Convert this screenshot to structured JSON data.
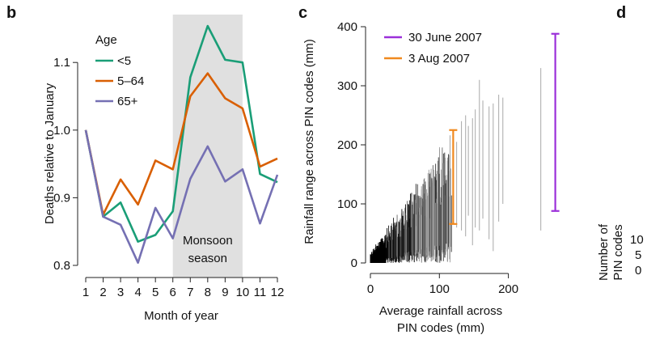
{
  "panels": {
    "b": {
      "letter": "b"
    },
    "c": {
      "letter": "c"
    },
    "d": {
      "letter": "d",
      "ylabel_lines": [
        "Number of",
        "PIN codes"
      ],
      "yticks": [
        "10",
        "5",
        "0"
      ]
    }
  },
  "chart_data": [
    {
      "id": "panel-b",
      "type": "line",
      "x": [
        1,
        2,
        3,
        4,
        5,
        6,
        7,
        8,
        9,
        10,
        11,
        12
      ],
      "series": [
        {
          "name": "<5",
          "color": "#1a9e77",
          "values": [
            1.0,
            0.872,
            0.893,
            0.835,
            0.845,
            0.88,
            1.078,
            1.154,
            1.104,
            1.1,
            0.935,
            0.923
          ]
        },
        {
          "name": "5–64",
          "color": "#d95f02",
          "values": [
            1.0,
            0.875,
            0.927,
            0.89,
            0.955,
            0.942,
            1.05,
            1.084,
            1.047,
            1.032,
            0.946,
            0.958
          ]
        },
        {
          "name": "65+",
          "color": "#7570b3",
          "values": [
            1.0,
            0.872,
            0.86,
            0.804,
            0.885,
            0.84,
            0.928,
            0.976,
            0.924,
            0.942,
            0.862,
            0.934
          ]
        }
      ],
      "legend_title": "Age",
      "shaded_region": {
        "x_from": 6,
        "x_to": 10,
        "label_lines": [
          "Monsoon",
          "season"
        ],
        "color": "#e0e0e0"
      },
      "xlabel": "Month of year",
      "ylabel": "Deaths relative to January",
      "xlim": [
        0.5,
        12.5
      ],
      "ylim": [
        0.78,
        1.18
      ],
      "yticks": [
        0.8,
        0.9,
        1.0,
        1.1
      ],
      "ytick_labels": [
        "0.8",
        "0.9",
        "1.0",
        "1.1"
      ],
      "xtick_labels": [
        "1",
        "2",
        "3",
        "4",
        "5",
        "6",
        "7",
        "8",
        "9",
        "10",
        "11",
        "12"
      ]
    },
    {
      "id": "panel-c",
      "type": "scatter",
      "xlabel_lines": [
        "Average rainfall across",
        "PIN codes (mm)"
      ],
      "ylabel": "Rainfall range across PIN codes (mm)",
      "xlim": [
        -5,
        280
      ],
      "ylim": [
        0,
        400
      ],
      "xticks": [
        0,
        100,
        200
      ],
      "xtick_labels": [
        "0",
        "100",
        "200"
      ],
      "yticks": [
        0,
        100,
        200,
        300,
        400
      ],
      "ytick_labels": [
        "0",
        "100",
        "200",
        "300",
        "400"
      ],
      "highlight_series": [
        {
          "name": "30 June 2007",
          "color": "#9b30d9",
          "x": 268,
          "low": 88,
          "high": 388
        },
        {
          "name": "3 Aug 2007",
          "color": "#f0891f",
          "x": 120,
          "low": 66,
          "high": 225
        }
      ],
      "grey_ranges": [
        {
          "x": 125,
          "low": 60,
          "high": 205
        },
        {
          "x": 132,
          "low": 55,
          "high": 240
        },
        {
          "x": 138,
          "low": 45,
          "high": 250
        },
        {
          "x": 142,
          "low": 80,
          "high": 232
        },
        {
          "x": 148,
          "low": 30,
          "high": 245
        },
        {
          "x": 152,
          "low": 60,
          "high": 260
        },
        {
          "x": 158,
          "low": 55,
          "high": 310
        },
        {
          "x": 163,
          "low": 75,
          "high": 275
        },
        {
          "x": 172,
          "low": 40,
          "high": 265
        },
        {
          "x": 178,
          "low": 20,
          "high": 270
        },
        {
          "x": 186,
          "low": 70,
          "high": 285
        },
        {
          "x": 192,
          "low": 100,
          "high": 280
        },
        {
          "x": 247,
          "low": 55,
          "high": 330
        }
      ]
    }
  ]
}
